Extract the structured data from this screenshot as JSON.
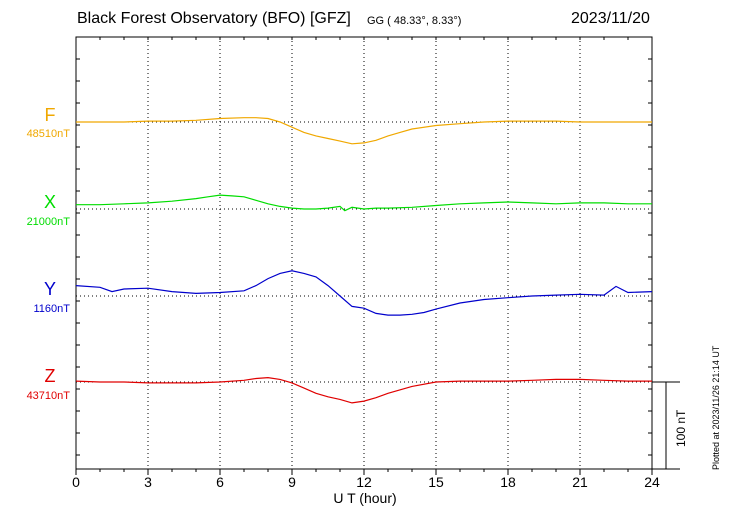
{
  "header": {
    "title": "Black Forest Observatory (BFO)  [GFZ]",
    "coords": "GG ( 48.33°,   8.33°)",
    "date": "2023/11/20"
  },
  "footer": {
    "plotted": "Plotted at 2023/11/26 21:14 UT",
    "scale_label": "100 nT"
  },
  "chart_data": {
    "type": "line",
    "xlabel": "U T (hour)",
    "xlim": [
      0,
      24
    ],
    "xticks": [
      0,
      3,
      6,
      9,
      12,
      15,
      18,
      21,
      24
    ],
    "grid": true,
    "scale_bar_nT": 100,
    "series": [
      {
        "name": "F",
        "baseline_label": "48510nT",
        "baseline": 48510,
        "color": "#f0a800",
        "x": [
          0,
          1,
          2,
          3,
          4,
          5,
          6,
          7,
          7.5,
          8,
          8.5,
          9,
          9.5,
          10,
          10.5,
          11,
          11.5,
          12,
          12.5,
          13,
          13.5,
          14,
          15,
          16,
          17,
          18,
          19,
          20,
          21,
          22,
          23,
          24
        ],
        "y": [
          48510,
          48510,
          48510,
          48511,
          48511,
          48512,
          48514,
          48515,
          48515,
          48514,
          48510,
          48504,
          48498,
          48494,
          48491,
          48488,
          48485,
          48486,
          48489,
          48494,
          48498,
          48502,
          48506,
          48508,
          48510,
          48511,
          48511,
          48511,
          48510,
          48510,
          48510,
          48510
        ]
      },
      {
        "name": "X",
        "baseline_label": "21000nT",
        "baseline": 21000,
        "color": "#00dd00",
        "x": [
          0,
          1,
          2,
          3,
          4,
          5,
          5.5,
          6,
          6.5,
          7,
          7.5,
          8,
          8.5,
          9,
          9.5,
          10,
          10.5,
          11,
          11.2,
          11.5,
          12,
          12.5,
          13,
          14,
          15,
          16,
          17,
          18,
          19,
          20,
          21,
          22,
          23,
          24
        ],
        "y": [
          21005,
          21005,
          21006,
          21007,
          21009,
          21012,
          21014,
          21016,
          21015,
          21014,
          21010,
          21006,
          21003,
          21001,
          21000,
          21000,
          21001,
          21003,
          20998,
          21002,
          21000,
          21001,
          21001,
          21002,
          21004,
          21006,
          21007,
          21008,
          21007,
          21006,
          21007,
          21007,
          21006,
          21006
        ]
      },
      {
        "name": "Y",
        "baseline_label": "1160nT",
        "baseline": 1160,
        "color": "#0000cc",
        "x": [
          0,
          1,
          1.5,
          2,
          3,
          4,
          5,
          6,
          7,
          7.5,
          8,
          8.5,
          9,
          9.5,
          10,
          10.5,
          11,
          11.5,
          12,
          12.5,
          13,
          13.5,
          14,
          14.5,
          15,
          16,
          17,
          18,
          19,
          20,
          21,
          22,
          22.5,
          23,
          24
        ],
        "y": [
          1172,
          1170,
          1165,
          1168,
          1169,
          1165,
          1163,
          1164,
          1166,
          1172,
          1180,
          1186,
          1189,
          1186,
          1182,
          1172,
          1160,
          1148,
          1146,
          1140,
          1138,
          1138,
          1139,
          1141,
          1145,
          1152,
          1156,
          1158,
          1160,
          1161,
          1162,
          1161,
          1171,
          1164,
          1165
        ]
      },
      {
        "name": "Z",
        "baseline_label": "43710nT",
        "baseline": 43710,
        "color": "#e00000",
        "x": [
          0,
          1,
          2,
          3,
          4,
          5,
          6,
          7,
          7.5,
          8,
          8.5,
          9,
          9.5,
          10,
          10.5,
          11,
          11.5,
          12,
          12.5,
          13,
          14,
          15,
          16,
          17,
          18,
          19,
          20,
          21,
          22,
          23,
          24
        ],
        "y": [
          43711,
          43710,
          43710,
          43709,
          43709,
          43709,
          43710,
          43712,
          43714,
          43715,
          43713,
          43709,
          43703,
          43697,
          43693,
          43690,
          43686,
          43688,
          43692,
          43697,
          43705,
          43710,
          43711,
          43711,
          43711,
          43712,
          43713,
          43713,
          43712,
          43711,
          43711
        ]
      }
    ]
  }
}
